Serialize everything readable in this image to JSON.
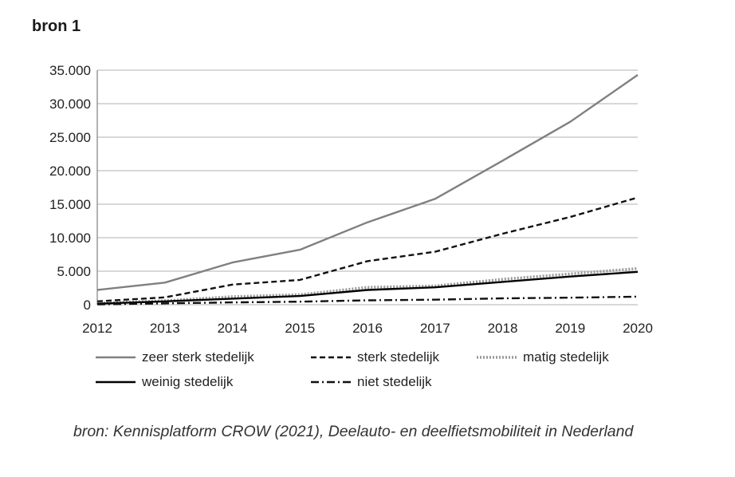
{
  "heading": "bron 1",
  "source_note": "bron: Kennisplatform CROW (2021), Deelauto- en deelfietsmobiliteit in Nederland",
  "chart_data": {
    "type": "line",
    "x": [
      "2012",
      "2013",
      "2014",
      "2015",
      "2016",
      "2017",
      "2018",
      "2019",
      "2020"
    ],
    "ylim": [
      0,
      35000
    ],
    "yticks": [
      "0",
      "5.000",
      "10.000",
      "15.000",
      "20.000",
      "25.000",
      "30.000",
      "35.000"
    ],
    "ytick_values": [
      0,
      5000,
      10000,
      15000,
      20000,
      25000,
      30000,
      35000
    ],
    "grid": true,
    "legend_position": "bottom",
    "series": [
      {
        "name": "zeer sterk stedelijk",
        "values": [
          2200,
          3300,
          6300,
          8200,
          12300,
          15800,
          21500,
          27300,
          34300
        ],
        "color": "#808080",
        "style": "solid"
      },
      {
        "name": "sterk stedelijk",
        "values": [
          500,
          1100,
          3000,
          3700,
          6500,
          7900,
          10600,
          13100,
          16000
        ],
        "color": "#111111",
        "style": "dashed"
      },
      {
        "name": "matig stedelijk",
        "values": [
          200,
          600,
          1200,
          1500,
          2600,
          2800,
          3800,
          4600,
          5400
        ],
        "color": "#999999",
        "style": "dotted"
      },
      {
        "name": "weinig stedelijk",
        "values": [
          150,
          500,
          900,
          1300,
          2200,
          2600,
          3400,
          4200,
          4900
        ],
        "color": "#000000",
        "style": "solid"
      },
      {
        "name": "niet stedelijk",
        "values": [
          50,
          200,
          350,
          450,
          650,
          750,
          950,
          1050,
          1200
        ],
        "color": "#111111",
        "style": "dashdot"
      }
    ]
  }
}
